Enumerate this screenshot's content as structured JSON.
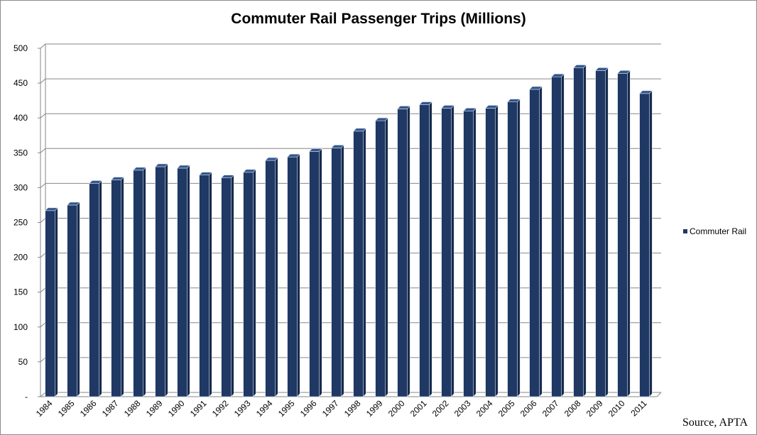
{
  "chart_data": {
    "type": "bar",
    "title": "Commuter Rail Passenger Trips (Millions)",
    "categories": [
      "1984",
      "1985",
      "1986",
      "1987",
      "1988",
      "1989",
      "1990",
      "1991",
      "1992",
      "1993",
      "1994",
      "1995",
      "1996",
      "1997",
      "1998",
      "1999",
      "2000",
      "2001",
      "2002",
      "2003",
      "2004",
      "2005",
      "2006",
      "2007",
      "2008",
      "2009",
      "2010",
      "2011"
    ],
    "series": [
      {
        "name": "Commuter Rail",
        "values": [
          267,
          275,
          306,
          311,
          325,
          330,
          328,
          318,
          314,
          322,
          339,
          344,
          352,
          357,
          381,
          396,
          413,
          419,
          414,
          410,
          414,
          423,
          441,
          459,
          472,
          468,
          464,
          435
        ],
        "color": "#1f3864"
      }
    ],
    "ylim": [
      0,
      500
    ],
    "yticks": [
      0,
      50,
      100,
      150,
      200,
      250,
      300,
      350,
      400,
      450,
      500
    ],
    "ytick_labels": [
      "-",
      "50",
      "100",
      "150",
      "200",
      "250",
      "300",
      "350",
      "400",
      "450",
      "500"
    ],
    "grid": true,
    "legend": "right",
    "source": "Source, APTA",
    "style": "3d-column"
  }
}
